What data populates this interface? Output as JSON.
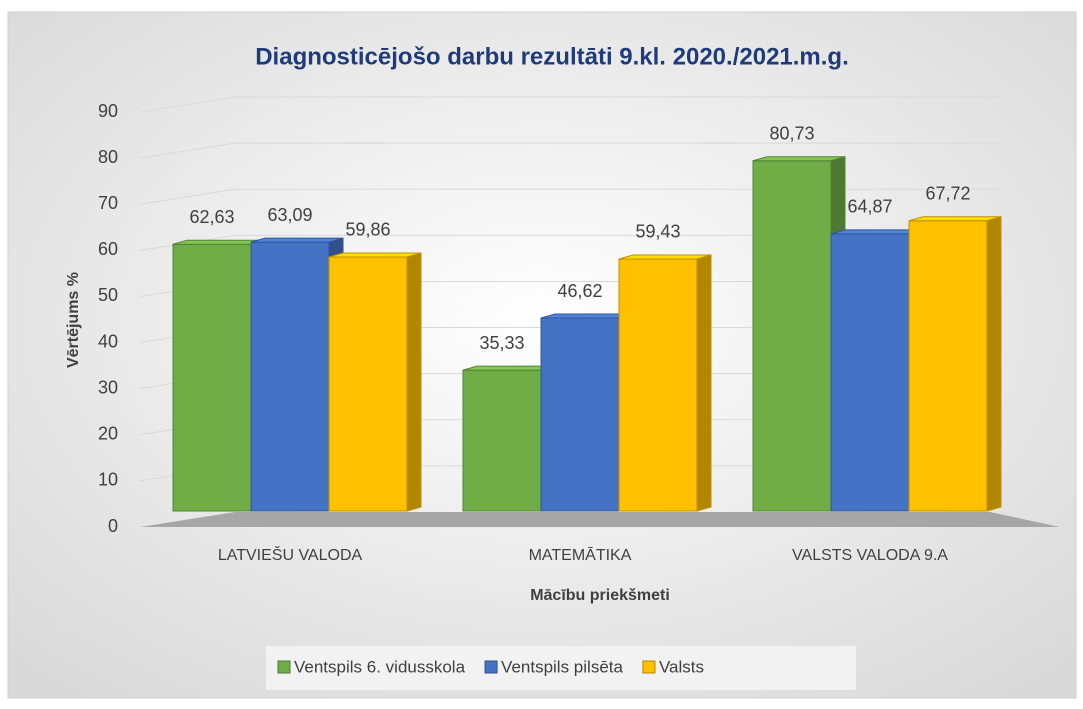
{
  "chart_data": {
    "type": "bar3d",
    "title": "Diagnosticējošo darbu rezultāti 9.kl. 2020./2021.m.g.",
    "x_label": "Mācību priekšmeti",
    "y_label": "Vērtējums %",
    "categories": [
      "LATVIEŠU VALODA",
      "MATEMĀTIKA",
      "VALSTS VALODA 9.A"
    ],
    "series": [
      {
        "name": "Ventspils 6. vidusskola",
        "color": "#70ad47",
        "values": [
          62.63,
          35.33,
          80.73
        ],
        "value_labels": [
          "62,63",
          "35,33",
          "80,73"
        ]
      },
      {
        "name": "Ventspils pilsēta",
        "color": "#4472c4",
        "values": [
          63.09,
          46.62,
          64.87
        ],
        "value_labels": [
          "63,09",
          "46,62",
          "64,87"
        ]
      },
      {
        "name": "Valsts",
        "color": "#ffc000",
        "values": [
          59.86,
          59.43,
          67.72
        ],
        "value_labels": [
          "59,86",
          "59,43",
          "67,72"
        ]
      }
    ],
    "ylim": [
      0,
      90
    ],
    "yticks": [
      0,
      10,
      20,
      30,
      40,
      50,
      60,
      70,
      80,
      90
    ],
    "grid": true,
    "legend": "bottom"
  }
}
